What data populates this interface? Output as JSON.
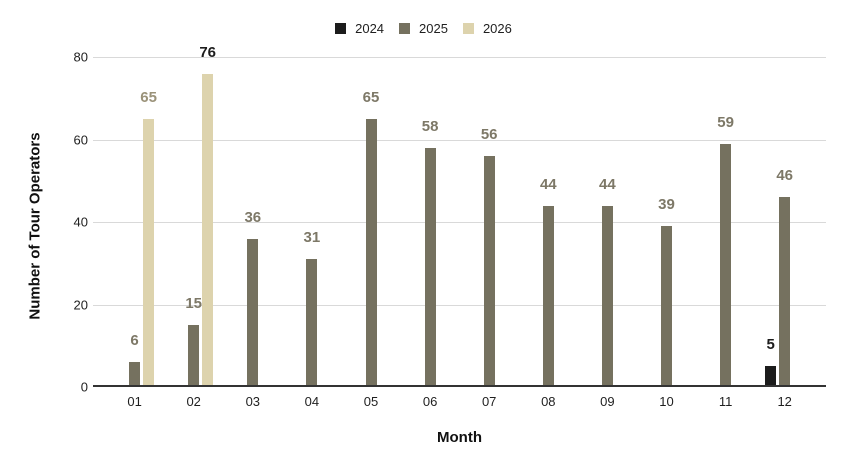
{
  "chart_data": {
    "type": "bar",
    "title": "",
    "xlabel": "Month",
    "ylabel": "Number of Tour Operators",
    "categories": [
      "01",
      "02",
      "03",
      "04",
      "05",
      "06",
      "07",
      "08",
      "09",
      "10",
      "11",
      "12"
    ],
    "series": [
      {
        "name": "2024",
        "color": "#1c1c1c",
        "label_color": "#1c1c1c",
        "values": [
          null,
          null,
          null,
          null,
          null,
          null,
          null,
          null,
          null,
          null,
          null,
          5
        ]
      },
      {
        "name": "2025",
        "color": "#75715f",
        "label_color": "#7d7867",
        "values": [
          6,
          15,
          36,
          31,
          65,
          58,
          56,
          44,
          44,
          39,
          59,
          46
        ]
      },
      {
        "name": "2026",
        "color": "#ddd3ad",
        "label_color": "#9a9279",
        "values": [
          65,
          76,
          null,
          null,
          null,
          null,
          null,
          null,
          null,
          null,
          null,
          null
        ]
      }
    ],
    "label_overrides": [
      {
        "series": "2026",
        "category": "02",
        "color": "#1c1c1c"
      }
    ],
    "ylim": [
      0,
      80
    ],
    "yticks": [
      0,
      20,
      40,
      60,
      80
    ],
    "grid": true,
    "legend_position": "top",
    "colors": {
      "background": "#ffffff",
      "gridline": "#d9d9d9",
      "axis_line": "#333333",
      "axis_text": "#1f1f1f"
    }
  }
}
